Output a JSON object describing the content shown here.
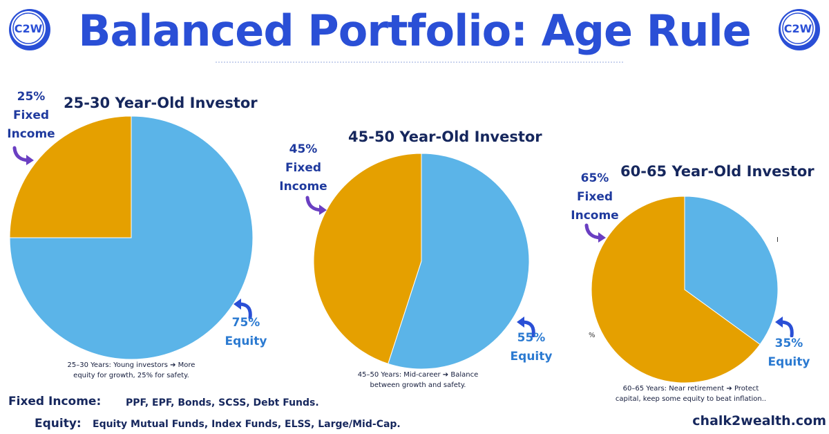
{
  "header": {
    "title": "Balanced Portfolio: Age Rule",
    "logo_text": "C2W"
  },
  "colors": {
    "title": "#2a4fd6",
    "equity": "#5bb4e8",
    "fixed_income": "#e5a000",
    "arrow": "#6a3fc2",
    "text_dark": "#16275d"
  },
  "chart_data": [
    {
      "type": "pie",
      "title": "25-30 Year-Old Investor",
      "categories": [
        "Fixed Income",
        "Equity"
      ],
      "values": [
        25,
        75
      ],
      "labels": {
        "fixed_pct": "25%",
        "fixed_line1": "Fixed",
        "fixed_line2": "Income",
        "equity_pct": "75%",
        "equity_name": "Equity"
      },
      "caption_line1": "25–30 Years: Young investors ➔ More",
      "caption_line2": "equity for growth, 25% for safety."
    },
    {
      "type": "pie",
      "title": "45-50 Year-Old Investor",
      "categories": [
        "Fixed Income",
        "Equity"
      ],
      "values": [
        45,
        55
      ],
      "labels": {
        "fixed_pct": "45%",
        "fixed_line1": "Fixed",
        "fixed_line2": "Income",
        "equity_pct": "55%",
        "equity_name": "Equity"
      },
      "caption_line1": "45–50 Years: Mid-career ➔ Balance",
      "caption_line2": "between growth and safety."
    },
    {
      "type": "pie",
      "title": "60-65 Year-Old Investor",
      "categories": [
        "Fixed Income",
        "Equity"
      ],
      "values": [
        65,
        35
      ],
      "labels": {
        "fixed_pct": "65%",
        "fixed_line1": "Fixed",
        "fixed_line2": "Income",
        "equity_pct": "35%",
        "equity_name": "Equity"
      },
      "caption_line1": "60–65 Years: Near retirement ➔ Protect",
      "caption_line2": "capital, keep some equity to beat inflation.."
    }
  ],
  "legend": {
    "fixed_key": "Fixed Income:",
    "fixed_value": "PPF, EPF, Bonds, SCSS, Debt Funds.",
    "equity_key": "Equity:",
    "equity_value": "Equity Mutual Funds, Index Funds, ELSS, Large/Mid-Cap."
  },
  "footer": {
    "brand": "chalk2wealth.com"
  },
  "stray_marks": {
    "mark1": "I",
    "mark2": "%"
  }
}
